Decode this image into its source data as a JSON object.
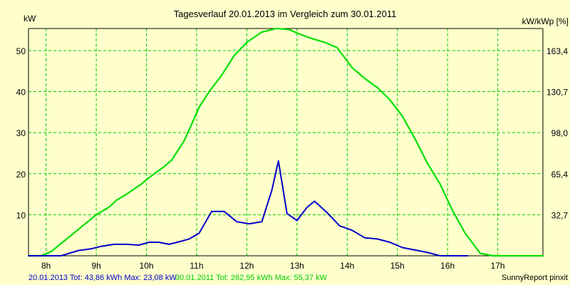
{
  "chart_data": {
    "type": "line",
    "title": "Tagesverlauf 20.01.2013 im Vergleich zum 30.01.2011",
    "ylabel_left": "kW",
    "ylabel_right": "kW/kWp [%]",
    "ylim": [
      0,
      55.37
    ],
    "xlim": [
      7.65,
      17.9
    ],
    "x_ticks": [
      {
        "value": 8,
        "label": "8h"
      },
      {
        "value": 9,
        "label": "9h"
      },
      {
        "value": 10,
        "label": "10h"
      },
      {
        "value": 11,
        "label": "11h"
      },
      {
        "value": 12,
        "label": "12h"
      },
      {
        "value": 13,
        "label": "13h"
      },
      {
        "value": 14,
        "label": "14h"
      },
      {
        "value": 15,
        "label": "15h"
      },
      {
        "value": 16,
        "label": "16h"
      },
      {
        "value": 17,
        "label": "17h"
      }
    ],
    "y_ticks_left": [
      {
        "value": 10,
        "label": "10"
      },
      {
        "value": 20,
        "label": "20"
      },
      {
        "value": 30,
        "label": "30"
      },
      {
        "value": 40,
        "label": "40"
      },
      {
        "value": 50,
        "label": "50"
      }
    ],
    "y_ticks_right": [
      {
        "value": 10,
        "label": "32,7"
      },
      {
        "value": 20,
        "label": "65,4"
      },
      {
        "value": 30,
        "label": "98,0"
      },
      {
        "value": 40,
        "label": "130,7"
      },
      {
        "value": 50,
        "label": "163,4"
      }
    ],
    "grid": true,
    "series": [
      {
        "name": "30.01.2011",
        "color": "#00e000",
        "x": [
          7.65,
          7.9,
          8.1,
          8.4,
          8.7,
          9.0,
          9.25,
          9.4,
          9.6,
          9.9,
          10.1,
          10.35,
          10.5,
          10.75,
          10.9,
          11.05,
          11.25,
          11.5,
          11.75,
          12.0,
          12.3,
          12.6,
          12.85,
          13.05,
          13.3,
          13.55,
          13.8,
          14.1,
          14.35,
          14.6,
          14.85,
          15.1,
          15.35,
          15.6,
          15.85,
          16.1,
          16.35,
          16.65,
          16.9,
          17.3,
          17.9
        ],
        "values": [
          0,
          0,
          1,
          4,
          7,
          10,
          11.8,
          13.5,
          15,
          17.5,
          19.5,
          21.7,
          23.3,
          28,
          32,
          36.2,
          40,
          44,
          48.8,
          52,
          54.5,
          55.4,
          55.1,
          54,
          52.9,
          52,
          50.7,
          45.8,
          43.2,
          41,
          38,
          34,
          28.5,
          22.5,
          17.5,
          11,
          5.5,
          0.6,
          0,
          0,
          0
        ]
      },
      {
        "name": "20.01.2013",
        "color": "#0000cc",
        "x": [
          7.65,
          8.3,
          8.65,
          8.9,
          9.1,
          9.35,
          9.6,
          9.85,
          10.05,
          10.25,
          10.45,
          10.65,
          10.85,
          11.05,
          11.3,
          11.55,
          11.8,
          12.05,
          12.3,
          12.5,
          12.63,
          12.8,
          13.0,
          13.2,
          13.35,
          13.6,
          13.85,
          14.1,
          14.35,
          14.6,
          14.85,
          15.1,
          15.35,
          15.6,
          15.85,
          16.4
        ],
        "values": [
          0,
          0,
          1.3,
          1.7,
          2.3,
          2.8,
          2.8,
          2.6,
          3.3,
          3.3,
          2.8,
          3.4,
          4.1,
          5.5,
          10.8,
          10.8,
          8.3,
          7.8,
          8.3,
          16,
          23.1,
          10.3,
          8.6,
          11.8,
          13.3,
          10.5,
          7.3,
          6.2,
          4.4,
          4.1,
          3.3,
          2,
          1.4,
          0.8,
          0,
          0
        ]
      }
    ],
    "legend": {
      "placement": "bottom-left",
      "entries": [
        {
          "text": "20.01.2013 Tot: 43,86 kWh Max: 23,08 kW",
          "color": "#0000cc"
        },
        {
          "text": "30.01.2011 Tot: 262,95 kWh Max: 55,37 kW",
          "color": "#00cc00"
        }
      ]
    },
    "footer_right": "SunnyReport pinxit"
  }
}
